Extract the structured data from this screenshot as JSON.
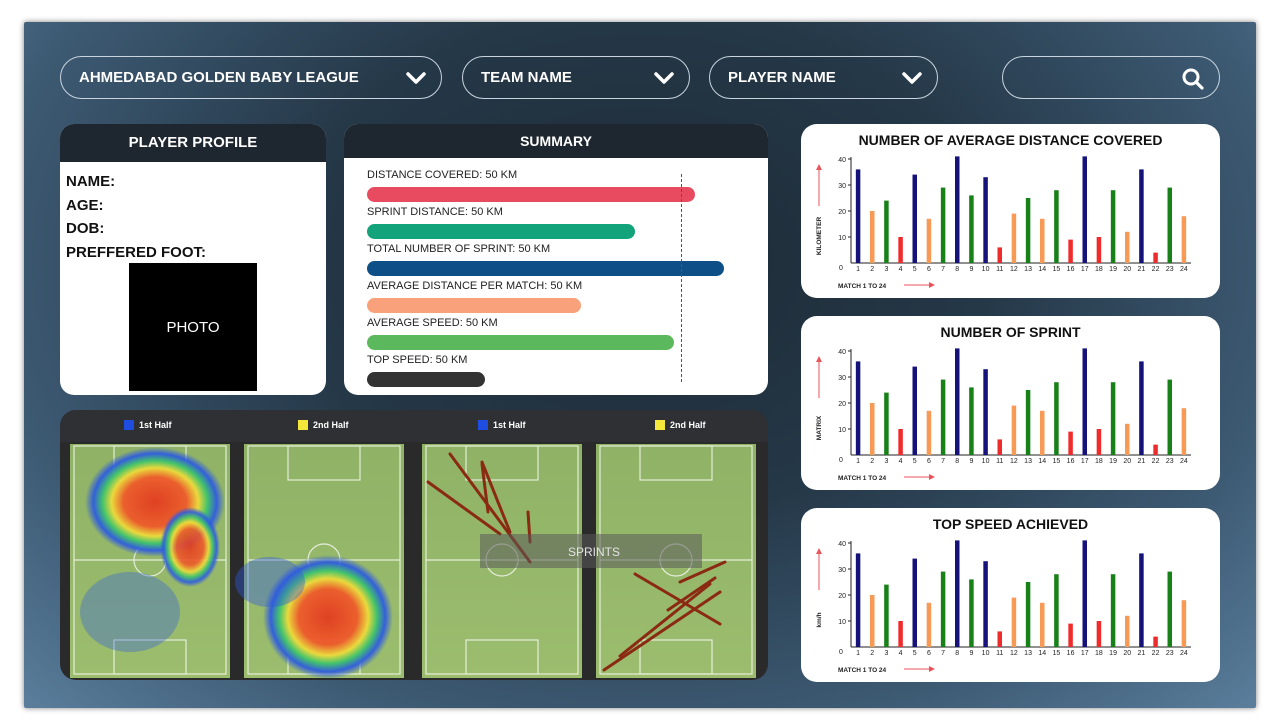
{
  "filters": {
    "league": "AHMEDABAD GOLDEN BABY LEAGUE",
    "team": "TEAM NAME",
    "player": "PLAYER NAME",
    "search_placeholder": ""
  },
  "profile": {
    "title": "PLAYER PROFILE",
    "name_label": "NAME:",
    "age_label": "AGE:",
    "dob_label": "DOB:",
    "foot_label": "PREFFERED FOOT:",
    "photo_label": "PHOTO"
  },
  "summary": {
    "title": "SUMMARY",
    "rows": [
      {
        "label": "DISTANCE COVERED: 50 KM",
        "fraction": 0.92,
        "color": "#e84a5f"
      },
      {
        "label": "SPRINT DISTANCE: 50 KM",
        "fraction": 0.75,
        "color": "#12a37b"
      },
      {
        "label": "TOTAL NUMBER OF SPRINT: 50 KM",
        "fraction": 1.0,
        "color": "#0d4f86"
      },
      {
        "label": "AVERAGE DISTANCE PER MATCH: 50 KM",
        "fraction": 0.6,
        "color": "#f8a17a"
      },
      {
        "label": "AVERAGE SPEED: 50 KM",
        "fraction": 0.86,
        "color": "#5cb85c"
      },
      {
        "label": "TOP SPEED: 50 KM",
        "fraction": 0.33,
        "color": "#333333"
      }
    ]
  },
  "heatmaps": {
    "first_half": "1st Half",
    "second_half": "2nd Half",
    "sprints_label": "SPRINTS",
    "first_half_color": "#1f4de0",
    "second_half_color": "#f4e93b"
  },
  "chart_data": [
    {
      "type": "bar",
      "title": "NUMBER OF AVERAGE DISTANCE COVERED",
      "ylabel": "KILOMETER",
      "xlabel": "MATCH 1 TO 24",
      "ylim": [
        0,
        40
      ],
      "yticks": [
        10,
        20,
        30,
        40
      ],
      "categories": [
        "1",
        "2",
        "3",
        "4",
        "5",
        "6",
        "7",
        "8",
        "9",
        "10",
        "11",
        "12",
        "13",
        "14",
        "15",
        "16",
        "17",
        "18",
        "19",
        "20",
        "21",
        "22",
        "23",
        "24"
      ],
      "values": [
        36,
        20,
        24,
        10,
        34,
        17,
        29,
        41,
        26,
        33,
        6,
        19,
        25,
        17,
        28,
        9,
        41,
        10,
        28,
        12,
        36,
        4,
        29,
        18
      ],
      "colors": [
        "#15127a",
        "#f79a55",
        "#178017",
        "#ef2b2b",
        "#15127a",
        "#f79a55",
        "#178017",
        "#15127a",
        "#178017",
        "#15127a",
        "#ef2b2b",
        "#f79a55",
        "#178017",
        "#f79a55",
        "#178017",
        "#ef2b2b",
        "#15127a",
        "#ef2b2b",
        "#178017",
        "#f79a55",
        "#15127a",
        "#ef2b2b",
        "#178017",
        "#f79a55"
      ]
    },
    {
      "type": "bar",
      "title": "NUMBER OF SPRINT",
      "ylabel": "MATRIX",
      "xlabel": "MATCH 1 TO 24",
      "ylim": [
        0,
        40
      ],
      "yticks": [
        10,
        20,
        30,
        40
      ],
      "categories": [
        "1",
        "2",
        "3",
        "4",
        "5",
        "6",
        "7",
        "8",
        "9",
        "10",
        "11",
        "12",
        "13",
        "14",
        "15",
        "16",
        "17",
        "18",
        "19",
        "20",
        "21",
        "22",
        "23",
        "24"
      ],
      "values": [
        36,
        20,
        24,
        10,
        34,
        17,
        29,
        41,
        26,
        33,
        6,
        19,
        25,
        17,
        28,
        9,
        41,
        10,
        28,
        12,
        36,
        4,
        29,
        18
      ],
      "colors": [
        "#15127a",
        "#f79a55",
        "#178017",
        "#ef2b2b",
        "#15127a",
        "#f79a55",
        "#178017",
        "#15127a",
        "#178017",
        "#15127a",
        "#ef2b2b",
        "#f79a55",
        "#178017",
        "#f79a55",
        "#178017",
        "#ef2b2b",
        "#15127a",
        "#ef2b2b",
        "#178017",
        "#f79a55",
        "#15127a",
        "#ef2b2b",
        "#178017",
        "#f79a55"
      ]
    },
    {
      "type": "bar",
      "title": "TOP SPEED ACHIEVED",
      "ylabel": "km/h",
      "xlabel": "MATCH 1 TO 24",
      "ylim": [
        0,
        40
      ],
      "yticks": [
        10,
        20,
        30,
        40
      ],
      "categories": [
        "1",
        "2",
        "3",
        "4",
        "5",
        "6",
        "7",
        "8",
        "9",
        "10",
        "11",
        "12",
        "13",
        "14",
        "15",
        "16",
        "17",
        "18",
        "19",
        "20",
        "21",
        "22",
        "23",
        "24"
      ],
      "values": [
        36,
        20,
        24,
        10,
        34,
        17,
        29,
        41,
        26,
        33,
        6,
        19,
        25,
        17,
        28,
        9,
        41,
        10,
        28,
        12,
        36,
        4,
        29,
        18
      ],
      "colors": [
        "#15127a",
        "#f79a55",
        "#178017",
        "#ef2b2b",
        "#15127a",
        "#f79a55",
        "#178017",
        "#15127a",
        "#178017",
        "#15127a",
        "#ef2b2b",
        "#f79a55",
        "#178017",
        "#f79a55",
        "#178017",
        "#ef2b2b",
        "#15127a",
        "#ef2b2b",
        "#178017",
        "#f79a55",
        "#15127a",
        "#ef2b2b",
        "#178017",
        "#f79a55"
      ]
    }
  ]
}
